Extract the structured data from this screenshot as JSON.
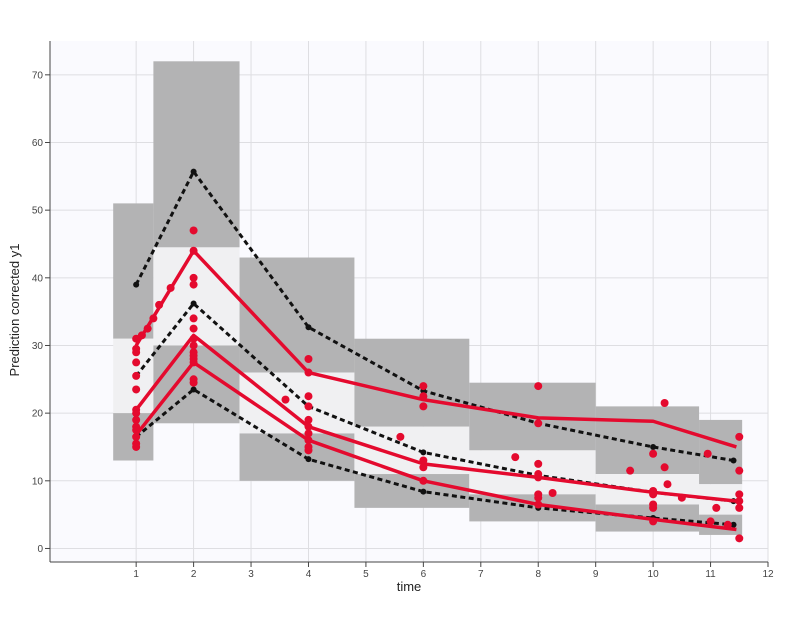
{
  "chart_data": {
    "type": "scatter",
    "xlabel": "time",
    "ylabel": "Prediction corrected y1",
    "xlim": [
      -0.5,
      12
    ],
    "ylim": [
      -2,
      75
    ],
    "x_ticks": [
      1,
      2,
      3,
      4,
      5,
      6,
      7,
      8,
      9,
      10,
      11,
      12
    ],
    "y_ticks": [
      0,
      10,
      20,
      30,
      40,
      50,
      60,
      70
    ],
    "grid": true,
    "colors": {
      "outer_band": "#b3b3b4",
      "median_band": "#f0f0f2",
      "plot_background": "#fafafe",
      "observed": "#e40a2e",
      "predicted": "#111111",
      "grid": "#dedee2"
    },
    "bins": [
      {
        "x0": 0.6,
        "x1": 1.3,
        "high": {
          "lo": 31,
          "hi": 51
        },
        "median": {
          "lo": 20,
          "hi": 31
        },
        "low": {
          "lo": 13,
          "hi": 20
        }
      },
      {
        "x0": 1.3,
        "x1": 2.8,
        "high": {
          "lo": 44.5,
          "hi": 72
        },
        "median": {
          "lo": 30,
          "hi": 44.5
        },
        "low": {
          "lo": 18.5,
          "hi": 30
        }
      },
      {
        "x0": 2.8,
        "x1": 4.8,
        "high": {
          "lo": 26,
          "hi": 43
        },
        "median": {
          "lo": 17,
          "hi": 26
        },
        "low": {
          "lo": 10,
          "hi": 17
        }
      },
      {
        "x0": 4.8,
        "x1": 6.8,
        "high": {
          "lo": 18,
          "hi": 31
        },
        "median": {
          "lo": 11,
          "hi": 18
        },
        "low": {
          "lo": 6,
          "hi": 11
        }
      },
      {
        "x0": 6.8,
        "x1": 9.0,
        "high": {
          "lo": 14.5,
          "hi": 24.5
        },
        "median": {
          "lo": 8,
          "hi": 14.5
        },
        "low": {
          "lo": 4,
          "hi": 8
        }
      },
      {
        "x0": 9.0,
        "x1": 10.8,
        "high": {
          "lo": 11,
          "hi": 21
        },
        "median": {
          "lo": 6.5,
          "hi": 11
        },
        "low": {
          "lo": 2.5,
          "hi": 6.5
        }
      },
      {
        "x0": 10.8,
        "x1": 11.55,
        "high": {
          "lo": 9.5,
          "hi": 19
        },
        "median": {
          "lo": 5,
          "hi": 9.5
        },
        "low": {
          "lo": 2,
          "hi": 5
        }
      }
    ],
    "predicted_percentiles": {
      "x": [
        1,
        2,
        4,
        6,
        8,
        10,
        11.4
      ],
      "p95": [
        39,
        55.7,
        32.7,
        23.3,
        18.5,
        15,
        13
      ],
      "p50": [
        25.5,
        36.2,
        21,
        14.2,
        10.8,
        8.3,
        7
      ],
      "p05": [
        16.5,
        23.5,
        13.2,
        8.4,
        6,
        4.5,
        3.5
      ]
    },
    "observed_percentiles": {
      "p95": {
        "x": [
          1,
          2,
          4,
          6,
          8,
          10,
          11.45
        ],
        "y": [
          30,
          44,
          26,
          22,
          19.3,
          18.8,
          15
        ]
      },
      "p50_upper": {
        "x": [
          1,
          2,
          4,
          6,
          8,
          10,
          11.45
        ],
        "y": [
          20.5,
          31.5,
          18,
          12.5,
          10.5,
          8.3,
          7
        ]
      },
      "p50_lower": {
        "x": [
          1,
          2,
          4,
          6,
          8,
          10,
          11.45
        ],
        "y": [
          16.8,
          27.5,
          16,
          10,
          6.5,
          4.3,
          2.8
        ]
      }
    },
    "observed_points": {
      "x": [
        1,
        1,
        1,
        1,
        1,
        1,
        1,
        1,
        1,
        1,
        1,
        1,
        1,
        1,
        1.1,
        1.2,
        1.3,
        1.4,
        1.6,
        2,
        2,
        2,
        2,
        2,
        2,
        2,
        2,
        2,
        2,
        2,
        2,
        2,
        2,
        3.6,
        4,
        4,
        4,
        4,
        4,
        4,
        4,
        4,
        4,
        4,
        5.6,
        6,
        6,
        6,
        6,
        6,
        6,
        7.6,
        8,
        8,
        8,
        8,
        8,
        8,
        8,
        8,
        8.25,
        9.6,
        10,
        10,
        10,
        10,
        10,
        10,
        10.2,
        10.2,
        10.25,
        10.5,
        10.95,
        11,
        11.1,
        11.3,
        11.5,
        11.5,
        11.5,
        11.5,
        11.5,
        11.5
      ],
      "y": [
        29.5,
        29,
        27.5,
        25.5,
        23.5,
        20.5,
        20,
        19,
        18,
        17.5,
        16.5,
        15.5,
        15,
        31,
        31.5,
        32.5,
        34,
        36,
        38.5,
        47,
        44,
        40,
        39,
        34,
        32.5,
        31,
        30,
        29,
        28.5,
        28,
        27.5,
        25,
        24.5,
        22,
        28,
        26,
        22.5,
        21,
        19,
        18,
        17,
        16,
        15,
        14.5,
        16.5,
        24,
        22.5,
        21,
        13,
        12,
        10,
        13.5,
        24,
        18.5,
        12.5,
        11,
        10.5,
        8,
        7.5,
        6.5,
        8.2,
        11.5,
        14,
        8.5,
        8,
        6.5,
        6,
        4,
        12,
        21.5,
        9.5,
        7.5,
        14,
        4,
        6,
        3.5,
        16.5,
        11.5,
        8,
        7,
        6,
        1.5
      ]
    }
  }
}
